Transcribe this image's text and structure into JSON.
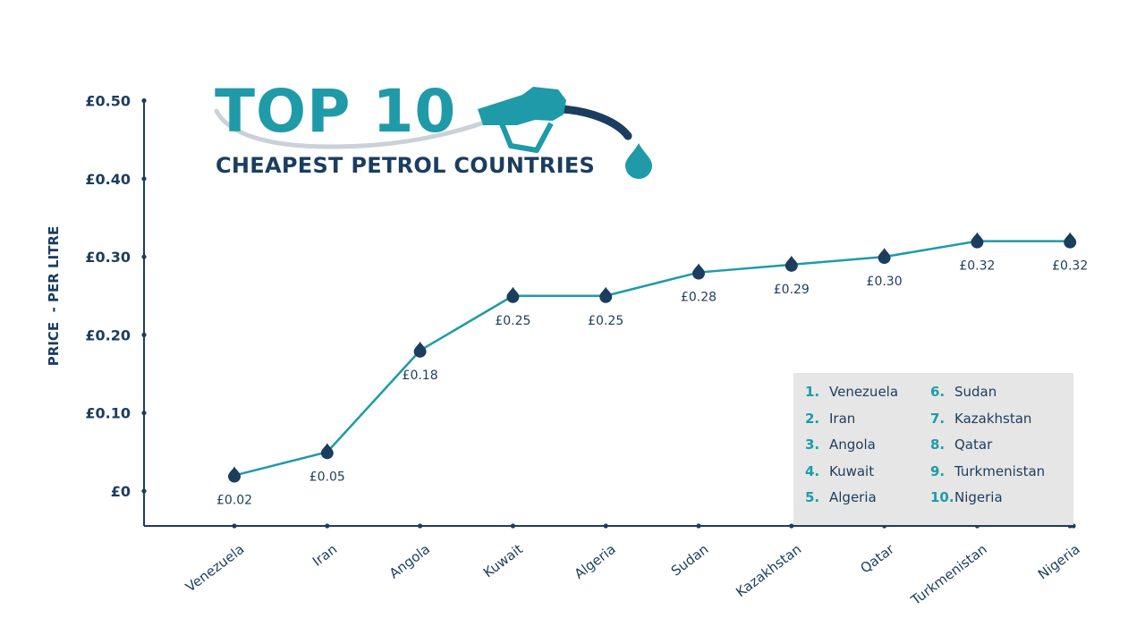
{
  "title": {
    "top": "TOP 10",
    "subtitle": "CHEAPEST PETROL COUNTRIES"
  },
  "colors": {
    "teal": "#1f9aa8",
    "navy": "#1b3d5e",
    "swoosh": "#c9d1d9",
    "panel": "#e6e6e6"
  },
  "icons": [
    "fuel-nozzle-icon",
    "fuel-drop-icon"
  ],
  "chart_data": {
    "type": "line",
    "ylabel": "PRICE  - PER LITRE",
    "ylim": [
      0,
      0.5
    ],
    "yticks": [
      {
        "value": 0.5,
        "label": "£0.50"
      },
      {
        "value": 0.4,
        "label": "£0.40"
      },
      {
        "value": 0.3,
        "label": "£0.30"
      },
      {
        "value": 0.2,
        "label": "£0.20"
      },
      {
        "value": 0.1,
        "label": "£0.10"
      },
      {
        "value": 0,
        "label": "£0"
      }
    ],
    "categories": [
      "Venezuela",
      "Iran",
      "Angola",
      "Kuwait",
      "Algeria",
      "Sudan",
      "Kazakhstan",
      "Qatar",
      "Turkmenistan",
      "Nigeria"
    ],
    "values": [
      0.02,
      0.05,
      0.18,
      0.25,
      0.25,
      0.28,
      0.29,
      0.3,
      0.32,
      0.32
    ],
    "data_labels": [
      "£0.02",
      "£0.05",
      "£0.18",
      "£0.25",
      "£0.25",
      "£0.28",
      "£0.29",
      "£0.30",
      "£0.32",
      "£0.32"
    ],
    "grid": false,
    "marker": "fuel-drop"
  },
  "ranking": [
    {
      "num": "1.",
      "name": "Venezuela"
    },
    {
      "num": "2.",
      "name": "Iran"
    },
    {
      "num": "3.",
      "name": "Angola"
    },
    {
      "num": "4.",
      "name": "Kuwait"
    },
    {
      "num": "5.",
      "name": "Algeria"
    },
    {
      "num": "6.",
      "name": "Sudan"
    },
    {
      "num": "7.",
      "name": "Kazakhstan"
    },
    {
      "num": "8.",
      "name": "Qatar"
    },
    {
      "num": "9.",
      "name": "Turkmenistan"
    },
    {
      "num": "10.",
      "name": "Nigeria"
    }
  ]
}
